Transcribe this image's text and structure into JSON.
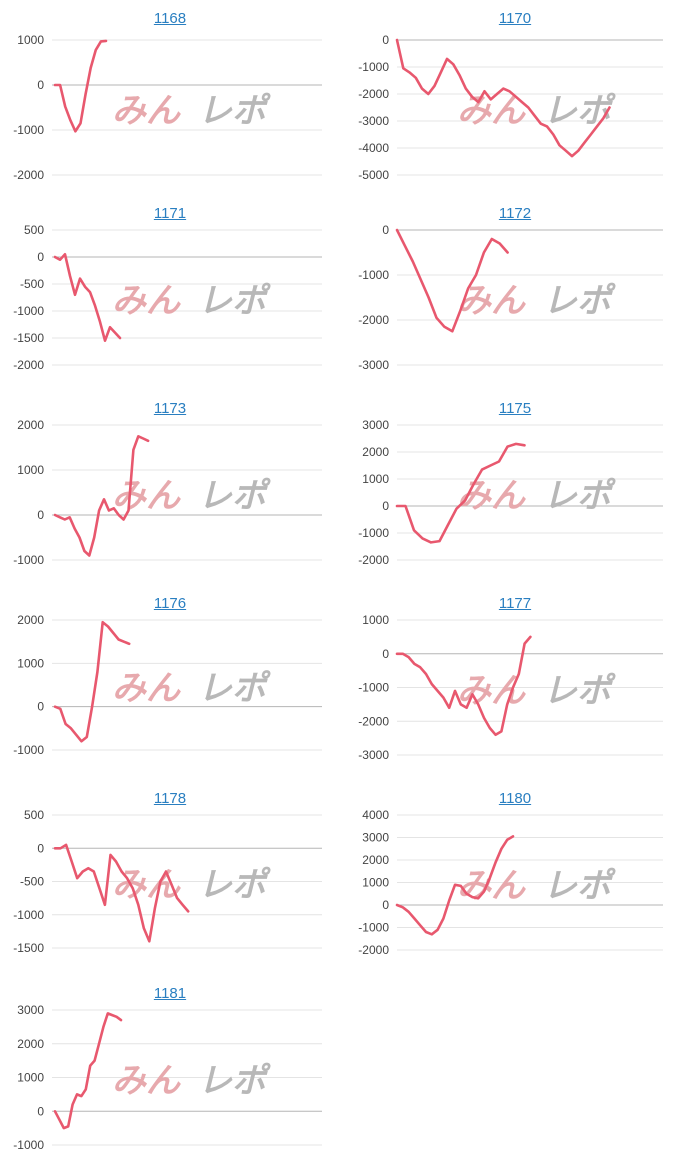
{
  "style": {
    "line_color": "#e8586e",
    "title_color": "#2a7fc1",
    "grid_color": "#e4e4e4",
    "zero_color": "#b5b5b5",
    "watermark_a_color": "#e7a9ad",
    "watermark_b_color": "#b8b8b8"
  },
  "watermark": {
    "part_a": "みん",
    "part_b": "レポ"
  },
  "chart_data": [
    {
      "type": "line",
      "title": "1168",
      "ylim": [
        -2000,
        1000
      ],
      "yticks": [
        1000,
        0,
        -1000,
        -2000
      ],
      "values": [
        0,
        0,
        -480,
        -780,
        -1030,
        -850,
        -200,
        380,
        780,
        970,
        980
      ]
    },
    {
      "type": "line",
      "title": "1170",
      "ylim": [
        -5000,
        0
      ],
      "yticks": [
        0,
        -1000,
        -2000,
        -3000,
        -4000,
        -5000
      ],
      "values": [
        0,
        -1050,
        -1200,
        -1400,
        -1800,
        -2000,
        -1700,
        -1200,
        -700,
        -900,
        -1300,
        -1800,
        -2100,
        -2300,
        -1900,
        -2200,
        -2000,
        -1800,
        -1900,
        -2100,
        -2300,
        -2500,
        -2800,
        -3100,
        -3200,
        -3500,
        -3900,
        -4100,
        -4300,
        -4100,
        -3800,
        -3500,
        -3200,
        -2900,
        -2500
      ]
    },
    {
      "type": "line",
      "title": "1171",
      "ylim": [
        -2000,
        500
      ],
      "yticks": [
        500,
        0,
        -500,
        -1000,
        -1500,
        -2000
      ],
      "values": [
        0,
        -50,
        50,
        -350,
        -700,
        -400,
        -550,
        -650,
        -900,
        -1200,
        -1550,
        -1300,
        -1400,
        -1500
      ]
    },
    {
      "type": "line",
      "title": "1172",
      "ylim": [
        -3000,
        0
      ],
      "yticks": [
        0,
        -1000,
        -2000,
        -3000
      ],
      "values": [
        0,
        -350,
        -700,
        -1100,
        -1500,
        -1950,
        -2150,
        -2250,
        -1800,
        -1300,
        -1000,
        -500,
        -200,
        -300,
        -500
      ]
    },
    {
      "type": "line",
      "title": "1173",
      "ylim": [
        -1000,
        2000
      ],
      "yticks": [
        2000,
        1000,
        0,
        -1000
      ],
      "values": [
        0,
        -50,
        -100,
        -50,
        -300,
        -500,
        -800,
        -900,
        -500,
        100,
        350,
        100,
        150,
        0,
        -100,
        100,
        1450,
        1750,
        1700,
        1650
      ]
    },
    {
      "type": "line",
      "title": "1175",
      "ylim": [
        -2000,
        3000
      ],
      "yticks": [
        3000,
        2000,
        1000,
        0,
        -1000,
        -2000
      ],
      "values": [
        0,
        0,
        -900,
        -1200,
        -1350,
        -1300,
        -700,
        -100,
        200,
        800,
        1350,
        1500,
        1650,
        2200,
        2300,
        2250
      ]
    },
    {
      "type": "line",
      "title": "1176",
      "ylim": [
        -1000,
        2000
      ],
      "yticks": [
        2000,
        1000,
        0,
        -1000
      ],
      "values": [
        0,
        -50,
        -400,
        -500,
        -650,
        -800,
        -700,
        0,
        800,
        1950,
        1850,
        1700,
        1550,
        1500,
        1450
      ]
    },
    {
      "type": "line",
      "title": "1177",
      "ylim": [
        -3000,
        1000
      ],
      "yticks": [
        1000,
        0,
        -1000,
        -2000,
        -3000
      ],
      "values": [
        0,
        0,
        -100,
        -300,
        -400,
        -600,
        -900,
        -1100,
        -1300,
        -1600,
        -1100,
        -1500,
        -1600,
        -1200,
        -1500,
        -1900,
        -2200,
        -2400,
        -2300,
        -1500,
        -1000,
        -600,
        300,
        500
      ]
    },
    {
      "type": "line",
      "title": "1178",
      "ylim": [
        -1500,
        500
      ],
      "yticks": [
        500,
        0,
        -500,
        -1000,
        -1500
      ],
      "values": [
        0,
        0,
        50,
        -200,
        -450,
        -350,
        -300,
        -350,
        -600,
        -850,
        -100,
        -200,
        -350,
        -450,
        -600,
        -850,
        -1200,
        -1400,
        -900,
        -500,
        -350,
        -550,
        -750,
        -850,
        -950
      ]
    },
    {
      "type": "line",
      "title": "1180",
      "ylim": [
        -2000,
        4000
      ],
      "yticks": [
        4000,
        3000,
        2000,
        1000,
        0,
        -1000,
        -2000
      ],
      "values": [
        0,
        -100,
        -300,
        -600,
        -900,
        -1200,
        -1300,
        -1100,
        -600,
        200,
        900,
        850,
        500,
        350,
        300,
        600,
        1200,
        1900,
        2500,
        2900,
        3050
      ]
    },
    {
      "type": "line",
      "title": "1181",
      "ylim": [
        -1000,
        3000
      ],
      "yticks": [
        3000,
        2000,
        1000,
        0,
        -1000
      ],
      "values": [
        0,
        -250,
        -500,
        -450,
        200,
        500,
        450,
        650,
        1350,
        1500,
        2000,
        2500,
        2900,
        2850,
        2800,
        2700
      ]
    }
  ]
}
